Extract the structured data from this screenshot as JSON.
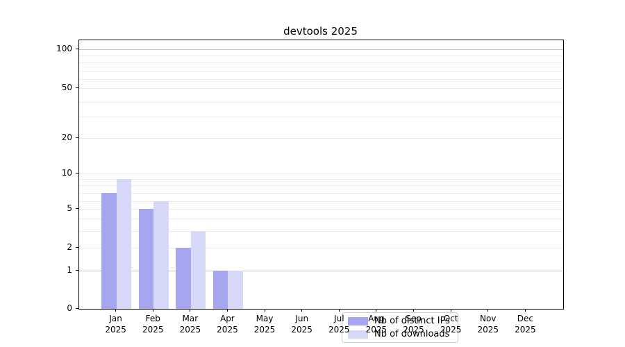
{
  "title": "devtools 2025",
  "chart_data": {
    "type": "bar",
    "title": "devtools 2025",
    "categories": [
      "Jan",
      "Feb",
      "Mar",
      "Apr",
      "May",
      "Jun",
      "Jul",
      "Aug",
      "Sep",
      "Oct",
      "Nov",
      "Dec"
    ],
    "x_axis": {
      "year_line": "2025"
    },
    "y_axis": {
      "ticks": [
        0,
        1,
        2,
        5,
        10,
        20,
        50,
        100
      ],
      "scale": "log-like",
      "range": [
        0,
        100
      ]
    },
    "series": [
      {
        "name": "Nb of distinct IPs",
        "color": "#a6a6f0",
        "values": [
          7,
          5,
          2,
          1,
          0,
          0,
          0,
          0,
          0,
          0,
          0,
          0
        ]
      },
      {
        "name": "Nb of downloads",
        "color": "#d7d7f8",
        "values": [
          9,
          6,
          3,
          1,
          0,
          0,
          0,
          0,
          0,
          0,
          0,
          0
        ]
      }
    ],
    "legend": {
      "position": "lower center"
    },
    "grid": true
  }
}
